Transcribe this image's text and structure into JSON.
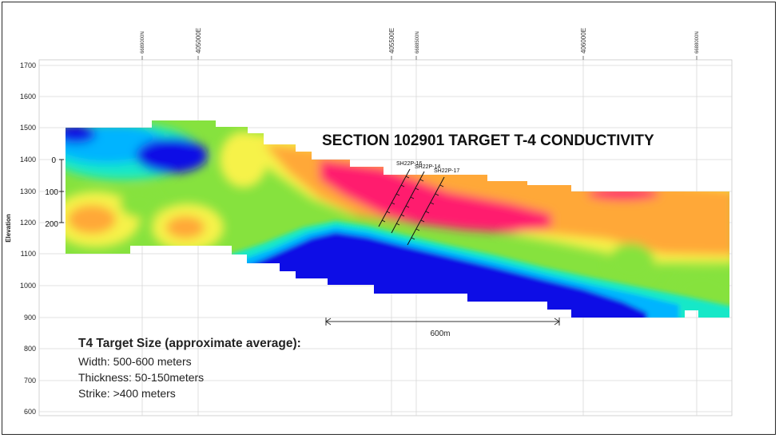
{
  "title": "SECTION 102901  TARGET T-4 CONDUCTIVITY",
  "y_axis": {
    "label": "Elevation",
    "ticks": [
      "1700",
      "1600",
      "1500",
      "1400",
      "1300",
      "1200",
      "1100",
      "1000",
      "900",
      "800",
      "700",
      "600"
    ]
  },
  "depth_scale": [
    "0",
    "100",
    "200"
  ],
  "easting_labels": [
    "405000E",
    "405500E",
    "406000E"
  ],
  "northing_labels": [
    "6689000N",
    "6688500N",
    "6688000N"
  ],
  "drill_holes": [
    "SH22P-16",
    "SH22P-14",
    "SH22P-17"
  ],
  "scale_bar": "600m",
  "target_info": {
    "heading": "T4 Target Size (approximate average):",
    "lines": [
      "Width: 500-600 meters",
      "Thickness: 50-150meters",
      "Strike: >400 meters"
    ]
  },
  "colors": {
    "very_low": "#0a10e6",
    "low": "#00b4ff",
    "mid_low": "#12e8c8",
    "mid": "#66e23a",
    "mid_high": "#f6f24a",
    "high": "#ffa838",
    "very_high": "#ff1a6e"
  }
}
